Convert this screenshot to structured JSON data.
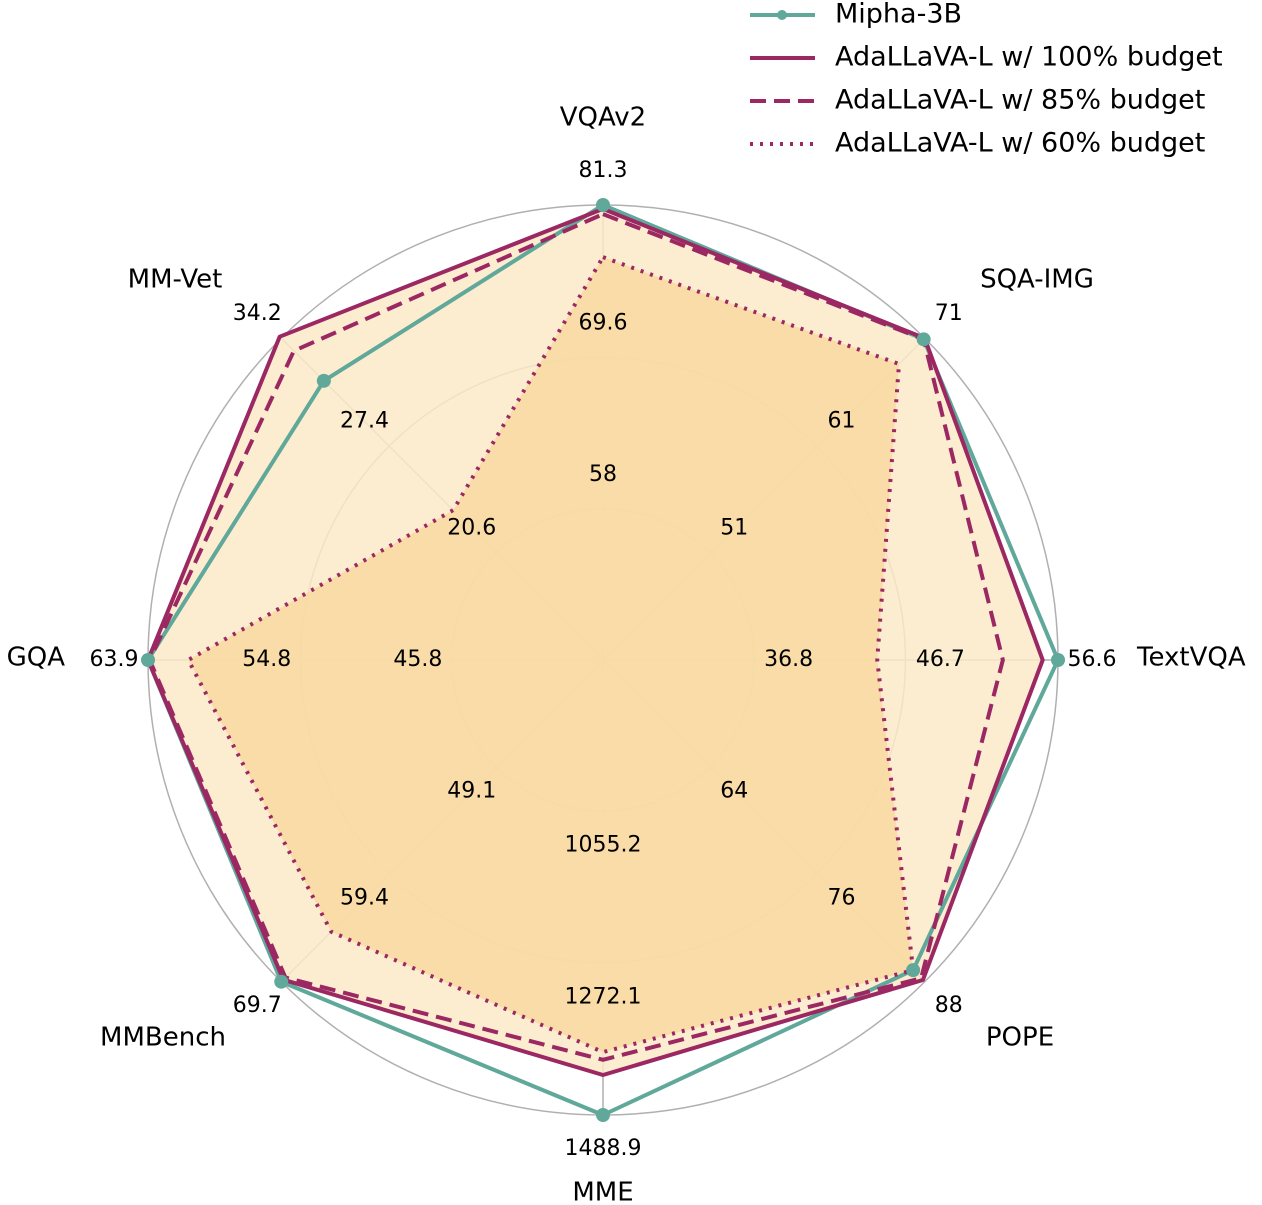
{
  "chart_data": {
    "type": "radar",
    "categories": [
      "VQAv2",
      "SQA-IMG",
      "TextVQA",
      "POPE",
      "MME",
      "MMBench",
      "GQA",
      "MM-Vet"
    ],
    "axes": [
      {
        "lim": [
          46.4,
          81.3
        ],
        "ticks": [
          58.0,
          69.6,
          81.3
        ]
      },
      {
        "lim": [
          41.0,
          71.0
        ],
        "ticks": [
          51.0,
          61.0,
          71.0
        ]
      },
      {
        "lim": [
          26.9,
          56.6
        ],
        "ticks": [
          36.8,
          46.7,
          56.6
        ]
      },
      {
        "lim": [
          52.0,
          88.0
        ],
        "ticks": [
          64.0,
          76.0,
          88.0
        ]
      },
      {
        "lim": [
          838.4,
          1488.9
        ],
        "ticks": [
          1055.2,
          1272.1,
          1488.9
        ]
      },
      {
        "lim": [
          38.8,
          69.7
        ],
        "ticks": [
          49.1,
          59.4,
          69.7
        ]
      },
      {
        "lim": [
          36.8,
          63.9
        ],
        "ticks": [
          45.8,
          54.8,
          63.9
        ]
      },
      {
        "lim": [
          13.8,
          34.2
        ],
        "ticks": [
          20.6,
          27.4,
          34.2
        ]
      }
    ],
    "series": [
      {
        "name": "Mipha-3B",
        "color": "#5fa89a",
        "style": "solid",
        "marker": true,
        "values": [
          81.3,
          70.9,
          56.6,
          86.7,
          1488.9,
          69.7,
          63.9,
          31.5
        ]
      },
      {
        "name": "AdaLLaVA-L w/ 100% budget",
        "color": "#9b2862",
        "style": "solid",
        "fill": "#fbe9c8",
        "values": [
          81.0,
          71.0,
          55.6,
          87.8,
          1431.7,
          69.5,
          63.9,
          34.3
        ]
      },
      {
        "name": "AdaLLaVA-L w/ 85% budget",
        "color": "#9b2862",
        "style": "dashed",
        "values": [
          80.6,
          70.9,
          53.0,
          87.6,
          1410.0,
          69.3,
          63.8,
          33.4
        ]
      },
      {
        "name": "AdaLLaVA-L w/ 60% budget",
        "color": "#9b2862",
        "style": "dotted",
        "fill": "#f8d9a0",
        "values": [
          77.3,
          68.6,
          44.8,
          86.7,
          1399.0,
          64.9,
          61.5,
          23.3
        ]
      }
    ],
    "grid": true,
    "legend": "upper right"
  }
}
